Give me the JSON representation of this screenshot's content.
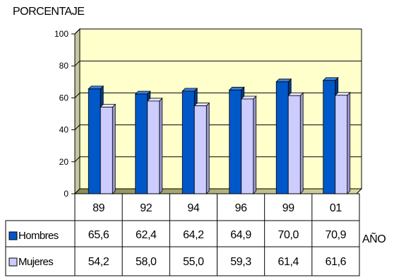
{
  "chart_data": {
    "type": "bar",
    "ylabel": "PORCENTAJE",
    "xlabel": "AÑO",
    "categories": [
      "89",
      "92",
      "94",
      "96",
      "99",
      "01"
    ],
    "series": [
      {
        "name": "Hombres",
        "values_text": [
          "65,6",
          "62,4",
          "64,2",
          "64,9",
          "70,0",
          "70,9"
        ],
        "values": [
          65.6,
          62.4,
          64.2,
          64.9,
          70.0,
          70.9
        ],
        "color": "#0058C8"
      },
      {
        "name": "Mujeres",
        "values_text": [
          "54,2",
          "58,0",
          "55,0",
          "59,3",
          "61,4",
          "61,6"
        ],
        "values": [
          54.2,
          58.0,
          55.0,
          59.3,
          61.4,
          61.6
        ],
        "color": "#CCCCFF"
      }
    ],
    "ylim": [
      0,
      100
    ],
    "yticks": [
      "0",
      "20",
      "40",
      "60",
      "80",
      "100"
    ],
    "grid": true,
    "plot_background": "#FFFFCC",
    "legend": "in data table"
  }
}
